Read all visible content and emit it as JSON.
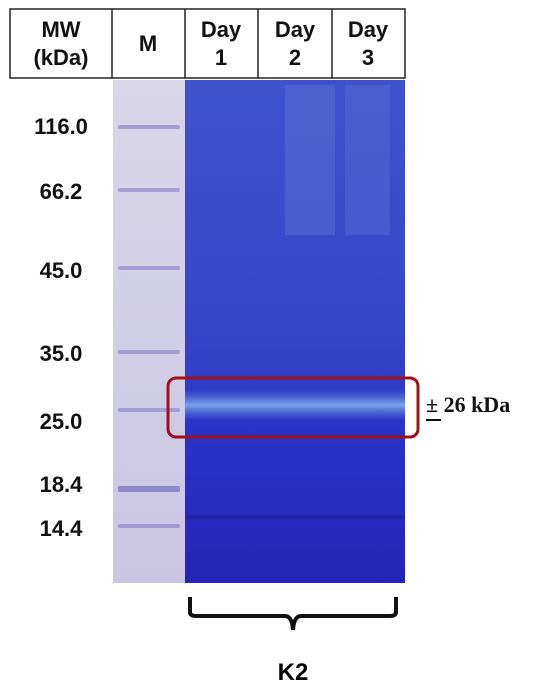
{
  "header": {
    "columns": [
      {
        "lines": [
          "MW",
          "(kDa)"
        ]
      },
      {
        "lines": [
          "M"
        ]
      },
      {
        "lines": [
          "Day",
          "1"
        ]
      },
      {
        "lines": [
          "Day",
          "2"
        ]
      },
      {
        "lines": [
          "Day",
          "3"
        ]
      }
    ]
  },
  "markers": [
    "116.0",
    "66.2",
    "45.0",
    "35.0",
    "25.0",
    "18.4",
    "14.4"
  ],
  "annotation": "± 26 kDa",
  "group_label": "K2"
}
